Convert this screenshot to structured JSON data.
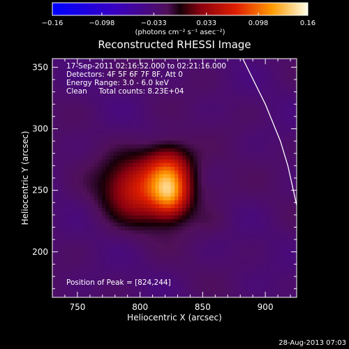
{
  "chart_data": {
    "type": "heatmap",
    "title": "Reconstructed RHESSI Image",
    "xlabel": "Heliocentric X (arcsec)",
    "ylabel": "Heliocentric Y (arcsec)",
    "xlim": [
      730,
      925
    ],
    "ylim": [
      163,
      357
    ],
    "xticks": [
      750,
      800,
      850,
      900
    ],
    "yticks": [
      200,
      250,
      300,
      350
    ],
    "colorbar": {
      "label": "(photons cm⁻² s⁻¹ asec⁻²)",
      "range": [
        -0.16,
        0.16
      ],
      "tick_values": [
        -0.16,
        -0.098,
        -0.033,
        0.033,
        0.098,
        0.16
      ],
      "tick_labels": [
        "−0.16",
        "−0.098",
        "−0.033",
        "0.033",
        "0.098",
        "0.16"
      ]
    },
    "info_lines": [
      "17-Sep-2011 02:16:52.000 to 02:21:16.000",
      "Detectors: 4F 5F 6F 7F 8F, Att 0",
      "Energy Range: 3.0 - 6.0 keV",
      "Clean     Total counts: 8.23E+04"
    ],
    "peak_label": "Position of Peak = [824,244]",
    "peak": [
      824,
      244
    ],
    "source_components": [
      {
        "x": 824,
        "y": 246,
        "sx": 10,
        "sy": 12,
        "amp": 0.09
      },
      {
        "x": 823,
        "y": 268,
        "sx": 12,
        "sy": 13,
        "amp": 0.07
      },
      {
        "x": 800,
        "y": 252,
        "sx": 18,
        "sy": 16,
        "amp": 0.06
      },
      {
        "x": 810,
        "y": 250,
        "sx": 30,
        "sy": 22,
        "amp": 0.03
      },
      {
        "x": 860,
        "y": 250,
        "sx": 9,
        "sy": 7,
        "amp": 0.006
      },
      {
        "x": 860,
        "y": 225,
        "sx": 9,
        "sy": 8,
        "amp": 0.006
      }
    ],
    "limb_curve": [
      [
        882,
        357
      ],
      [
        900,
        320
      ],
      [
        912,
        290
      ],
      [
        918,
        270
      ],
      [
        925,
        238
      ]
    ],
    "timestamp": "28-Aug-2013 07:03"
  }
}
